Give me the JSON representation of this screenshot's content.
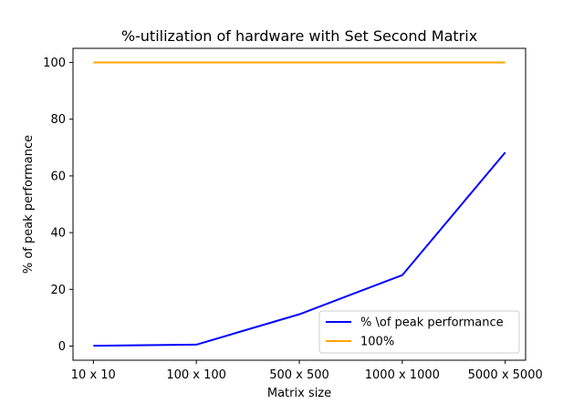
{
  "chart_data": {
    "type": "line",
    "title": "%-utilization of hardware with Set Second Matrix",
    "xlabel": "Matrix size",
    "ylabel": "% of peak performance",
    "categories": [
      "10 x 10",
      "100 x 100",
      "500 x 500",
      "1000 x 1000",
      "5000 x 5000"
    ],
    "yticks": [
      0,
      20,
      40,
      60,
      80,
      100
    ],
    "ytick_labels": [
      "0",
      "20",
      "40",
      "60",
      "80",
      "100"
    ],
    "ylim": [
      -5,
      105
    ],
    "grid": false,
    "legend_position": "lower-right",
    "series": [
      {
        "name": "% \\of peak performance",
        "color": "#0000ff",
        "values": [
          0.1,
          0.5,
          11.2,
          25.0,
          68.3
        ]
      },
      {
        "name": "100%",
        "color": "#ffa500",
        "values": [
          100,
          100,
          100,
          100,
          100
        ]
      }
    ]
  }
}
